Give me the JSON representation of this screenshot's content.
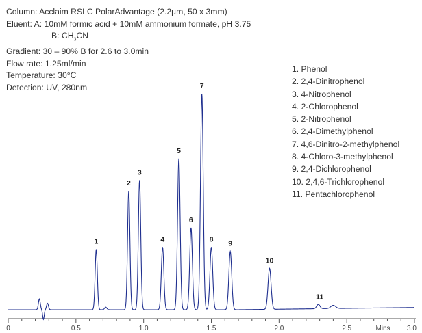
{
  "conditions": {
    "column": "Column: Acclaim RSLC PolarAdvantage (2.2µm, 50 x 3mm)",
    "eluent_a": "Eluent:  A: 10mM formic acid + 10mM ammonium formate, pH 3.75",
    "eluent_b_prefix": "B: CH",
    "eluent_b_sub": "3",
    "eluent_b_suffix": "CN",
    "gradient": "Gradient: 30 – 90% B for 2.6 to 3.0min",
    "flow_rate": "Flow rate: 1.25ml/min",
    "temperature": "Temperature: 30°C",
    "detection": "Detection: UV, 280nm"
  },
  "chart_data": {
    "type": "line",
    "xlabel": "Mins",
    "xlim": [
      0,
      3.0
    ],
    "x_ticks": [
      "0",
      "0.5",
      "1.0",
      "1.5",
      "2.0",
      "2.5",
      "3.0"
    ],
    "line_color": "#1f2f8f",
    "peaks": [
      {
        "label": "1",
        "name": "1. Phenol",
        "t": 0.65,
        "height": 0.28
      },
      {
        "label": "2",
        "name": "2. 2,4-Dinitrophenol",
        "t": 0.89,
        "height": 0.55
      },
      {
        "label": "3",
        "name": "3. 4-Nitrophenol",
        "t": 0.97,
        "height": 0.6
      },
      {
        "label": "4",
        "name": "4. 2-Chlorophenol",
        "t": 1.14,
        "height": 0.29
      },
      {
        "label": "5",
        "name": "5. 2-Nitrophenol",
        "t": 1.26,
        "height": 0.7
      },
      {
        "label": "6",
        "name": "6. 2,4-Dimethylphenol",
        "t": 1.35,
        "height": 0.38
      },
      {
        "label": "7",
        "name": "7. 4,6-Dinitro-2-methylphenol",
        "t": 1.43,
        "height": 1.0
      },
      {
        "label": "8",
        "name": "8. 4-Chloro-3-methylphenol",
        "t": 1.5,
        "height": 0.29
      },
      {
        "label": "9",
        "name": "9. 2,4-Dichlorophenol",
        "t": 1.64,
        "height": 0.27
      },
      {
        "label": "10",
        "name": "10. 2,4,6-Trichlorophenol",
        "t": 1.93,
        "height": 0.19
      },
      {
        "label": "11",
        "name": "11. Pentachlorophenol",
        "t": 2.29,
        "height": 0.02
      }
    ]
  }
}
